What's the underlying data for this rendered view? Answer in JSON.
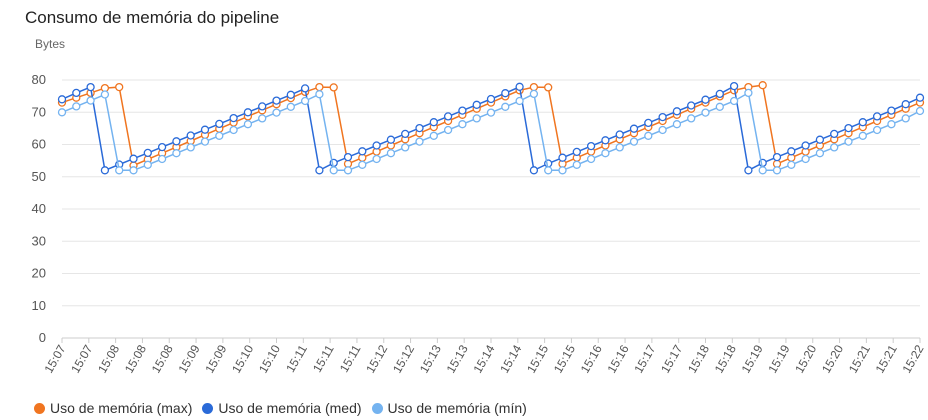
{
  "chart_data": {
    "type": "line",
    "title": "Consumo de memória do pipeline",
    "ylabel": "Bytes",
    "xlabel": "",
    "ylim": [
      0,
      80
    ],
    "yticks": [
      0,
      10,
      20,
      30,
      40,
      50,
      60,
      70,
      80
    ],
    "grid": true,
    "legend_position": "bottom-left",
    "x": [
      "15:07",
      "15:07",
      "15:08",
      "15:08",
      "15:08",
      "15:09",
      "15:09",
      "15:10",
      "15:10",
      "15:11",
      "15:11",
      "15:11",
      "15:12",
      "15:12",
      "15:13",
      "15:13",
      "15:14",
      "15:14",
      "15:15",
      "15:15",
      "15:16",
      "15:16",
      "15:17",
      "15:17",
      "15:18",
      "15:18",
      "15:19",
      "15:19",
      "15:20",
      "15:20",
      "15:21",
      "15:21",
      "15:22"
    ],
    "series": [
      {
        "name": "Uso de memória (max)",
        "color": "#f07520",
        "points": [
          [
            0,
            73
          ],
          [
            0.5,
            74.5
          ],
          [
            1,
            76
          ],
          [
            1.5,
            77.5
          ],
          [
            2,
            77.8
          ],
          [
            2.5,
            53.5
          ],
          [
            3,
            55.4
          ],
          [
            3.5,
            57.3
          ],
          [
            4,
            59.2
          ],
          [
            4.5,
            61.1
          ],
          [
            5,
            63
          ],
          [
            5.5,
            64.9
          ],
          [
            6,
            66.8
          ],
          [
            6.5,
            68.7
          ],
          [
            7,
            70.6
          ],
          [
            7.5,
            72.5
          ],
          [
            8,
            74.4
          ],
          [
            8.5,
            76.3
          ],
          [
            9,
            77.8
          ],
          [
            9.5,
            77.7
          ],
          [
            10,
            54
          ],
          [
            10.5,
            55.9
          ],
          [
            11,
            57.8
          ],
          [
            11.5,
            59.7
          ],
          [
            12,
            61.6
          ],
          [
            12.5,
            63.5
          ],
          [
            13,
            65.4
          ],
          [
            13.5,
            67.3
          ],
          [
            14,
            69.2
          ],
          [
            14.5,
            71.1
          ],
          [
            15,
            73
          ],
          [
            15.5,
            74.9
          ],
          [
            16,
            76.8
          ],
          [
            16.5,
            77.8
          ],
          [
            17,
            77.7
          ],
          [
            17.5,
            54
          ],
          [
            18,
            55.9
          ],
          [
            18.5,
            57.8
          ],
          [
            19,
            59.7
          ],
          [
            19.5,
            61.6
          ],
          [
            20,
            63.5
          ],
          [
            20.5,
            65.4
          ],
          [
            21,
            67.3
          ],
          [
            21.5,
            69.2
          ],
          [
            22,
            71.1
          ],
          [
            22.5,
            73
          ],
          [
            23,
            74.9
          ],
          [
            23.5,
            76.8
          ],
          [
            24,
            77.8
          ],
          [
            24.5,
            78.4
          ],
          [
            25,
            54
          ],
          [
            25.5,
            55.9
          ],
          [
            26,
            57.8
          ],
          [
            26.5,
            59.7
          ],
          [
            27,
            61.6
          ],
          [
            27.5,
            63.5
          ],
          [
            28,
            65.4
          ],
          [
            28.5,
            67.3
          ],
          [
            29,
            69.2
          ],
          [
            29.5,
            71.1
          ],
          [
            30,
            73
          ]
        ]
      },
      {
        "name": "Uso de memória (med)",
        "color": "#2a6ad8",
        "points": [
          [
            0,
            74
          ],
          [
            0.5,
            76
          ],
          [
            1,
            77.8
          ],
          [
            1.5,
            52
          ],
          [
            2,
            53.8
          ],
          [
            2.5,
            55.6
          ],
          [
            3,
            57.4
          ],
          [
            3.5,
            59.2
          ],
          [
            4,
            61
          ],
          [
            4.5,
            62.8
          ],
          [
            5,
            64.6
          ],
          [
            5.5,
            66.4
          ],
          [
            6,
            68.2
          ],
          [
            6.5,
            70
          ],
          [
            7,
            71.8
          ],
          [
            7.5,
            73.6
          ],
          [
            8,
            75.4
          ],
          [
            8.5,
            77.4
          ],
          [
            9,
            52
          ],
          [
            9.5,
            54.3
          ],
          [
            10,
            56.1
          ],
          [
            10.5,
            57.9
          ],
          [
            11,
            59.7
          ],
          [
            11.5,
            61.5
          ],
          [
            12,
            63.3
          ],
          [
            12.5,
            65.1
          ],
          [
            13,
            66.9
          ],
          [
            13.5,
            68.7
          ],
          [
            14,
            70.5
          ],
          [
            14.5,
            72.3
          ],
          [
            15,
            74.1
          ],
          [
            15.5,
            75.9
          ],
          [
            16,
            77.9
          ],
          [
            16.5,
            52
          ],
          [
            17,
            54.1
          ],
          [
            17.5,
            55.9
          ],
          [
            18,
            57.7
          ],
          [
            18.5,
            59.5
          ],
          [
            19,
            61.3
          ],
          [
            19.5,
            63.1
          ],
          [
            20,
            64.9
          ],
          [
            20.5,
            66.7
          ],
          [
            21,
            68.5
          ],
          [
            21.5,
            70.3
          ],
          [
            22,
            72.1
          ],
          [
            22.5,
            73.9
          ],
          [
            23,
            75.7
          ],
          [
            23.5,
            78.1
          ],
          [
            24,
            52
          ],
          [
            24.5,
            54.3
          ],
          [
            25,
            56.1
          ],
          [
            25.5,
            57.9
          ],
          [
            26,
            59.7
          ],
          [
            26.5,
            61.5
          ],
          [
            27,
            63.3
          ],
          [
            27.5,
            65.1
          ],
          [
            28,
            66.9
          ],
          [
            28.5,
            68.7
          ],
          [
            29,
            70.5
          ],
          [
            29.5,
            72.5
          ],
          [
            30,
            74.5
          ]
        ]
      },
      {
        "name": "Uso de memória (mín)",
        "color": "#74b3f0",
        "points": [
          [
            0,
            70
          ],
          [
            0.5,
            71.8
          ],
          [
            1,
            73.6
          ],
          [
            1.5,
            75.5
          ],
          [
            2,
            52
          ],
          [
            2.5,
            52
          ],
          [
            3,
            53.7
          ],
          [
            3.5,
            55.5
          ],
          [
            4,
            57.3
          ],
          [
            4.5,
            59.1
          ],
          [
            5,
            60.9
          ],
          [
            5.5,
            62.7
          ],
          [
            6,
            64.5
          ],
          [
            6.5,
            66.3
          ],
          [
            7,
            68.1
          ],
          [
            7.5,
            69.9
          ],
          [
            8,
            71.7
          ],
          [
            8.5,
            73.5
          ],
          [
            9,
            75.6
          ],
          [
            9.5,
            52
          ],
          [
            10,
            52
          ],
          [
            10.5,
            53.7
          ],
          [
            11,
            55.5
          ],
          [
            11.5,
            57.3
          ],
          [
            12,
            59.1
          ],
          [
            12.5,
            60.9
          ],
          [
            13,
            62.7
          ],
          [
            13.5,
            64.5
          ],
          [
            14,
            66.3
          ],
          [
            14.5,
            68.1
          ],
          [
            15,
            69.9
          ],
          [
            15.5,
            71.7
          ],
          [
            16,
            73.5
          ],
          [
            16.5,
            75.7
          ],
          [
            17,
            52
          ],
          [
            17.5,
            52
          ],
          [
            18,
            53.7
          ],
          [
            18.5,
            55.5
          ],
          [
            19,
            57.3
          ],
          [
            19.5,
            59.1
          ],
          [
            20,
            60.9
          ],
          [
            20.5,
            62.7
          ],
          [
            21,
            64.5
          ],
          [
            21.5,
            66.3
          ],
          [
            22,
            68.1
          ],
          [
            22.5,
            69.9
          ],
          [
            23,
            71.7
          ],
          [
            23.5,
            73.5
          ],
          [
            24,
            76
          ],
          [
            24.5,
            52
          ],
          [
            25,
            52
          ],
          [
            25.5,
            53.7
          ],
          [
            26,
            55.5
          ],
          [
            26.5,
            57.3
          ],
          [
            27,
            59.1
          ],
          [
            27.5,
            60.9
          ],
          [
            28,
            62.7
          ],
          [
            28.5,
            64.5
          ],
          [
            29,
            66.3
          ],
          [
            29.5,
            68.1
          ],
          [
            30,
            70.4
          ]
        ]
      }
    ]
  },
  "legend": [
    {
      "label": "Uso de memória (max)",
      "color": "#f07520"
    },
    {
      "label": "Uso de memória (med)",
      "color": "#2a6ad8"
    },
    {
      "label": "Uso de memória (mín)",
      "color": "#74b3f0"
    }
  ]
}
